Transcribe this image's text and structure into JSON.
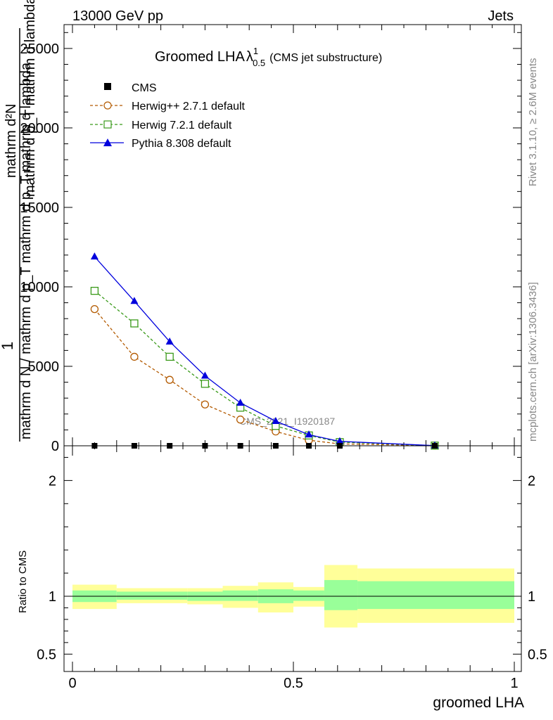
{
  "header": {
    "left": "13000 GeV pp",
    "right": "Jets"
  },
  "side_labels": {
    "rivet": "Rivet 3.1.10, ≥ 2.6M events",
    "mcplots": "mcplots.cern.ch [arXiv:1306.3436]"
  },
  "watermark": "CMS_2021_I1920187",
  "colors": {
    "cms": "#000000",
    "herwigpp": "#b35a00",
    "herwig7": "#3a9a1a",
    "pythia": "#0000dd",
    "band_inner": "#99ff99",
    "band_outer": "#ffff99"
  },
  "chart_data": [
    {
      "type": "line",
      "title": "Groomed LHA",
      "title_symbol": "λ",
      "title_sup": "1",
      "title_sub": "0.5",
      "title_note": "(CMS jet substructure)",
      "ylabel_top": "1",
      "ylabel_num": "mathrm d²N",
      "ylabel_den": "mathrm d p_T mathrm d lambda",
      "ylabel_overlap": "mathrm d N / mathrm d p_T mathrm d p_T mathrm d lambda",
      "ylim": [
        0,
        26500
      ],
      "yticks": [
        0,
        5000,
        10000,
        15000,
        20000,
        25000
      ],
      "ytick_labels": [
        "0",
        "5000",
        "10000",
        "15000",
        "20000",
        "25000"
      ],
      "xlim": [
        0,
        1
      ],
      "legend_position": "top-left",
      "legend": [
        {
          "label": "CMS",
          "marker": "square-filled"
        },
        {
          "label": "Herwig++ 2.7.1 default",
          "marker": "circle-open",
          "dash": true
        },
        {
          "label": "Herwig 7.2.1 default",
          "marker": "square-open",
          "dash": true
        },
        {
          "label": "Pythia 8.308 default",
          "marker": "triangle-filled",
          "dash": false
        }
      ],
      "cms": {
        "x": [
          0.05,
          0.14,
          0.22,
          0.3,
          0.38,
          0.46,
          0.535,
          0.605,
          0.82
        ],
        "y": [
          0,
          0,
          0,
          0,
          0,
          0,
          0,
          0,
          0
        ]
      },
      "series": [
        {
          "name": "Herwig++ 2.7.1 default",
          "x": [
            0.05,
            0.14,
            0.22,
            0.3,
            0.38,
            0.46,
            0.535,
            0.605,
            0.82
          ],
          "y": [
            8600,
            5600,
            4150,
            2600,
            1650,
            900,
            350,
            120,
            10
          ]
        },
        {
          "name": "Herwig 7.2.1 default",
          "x": [
            0.05,
            0.14,
            0.22,
            0.3,
            0.38,
            0.46,
            0.535,
            0.605,
            0.82
          ],
          "y": [
            9750,
            7700,
            5600,
            3900,
            2400,
            1250,
            650,
            230,
            10
          ]
        },
        {
          "name": "Pythia 8.308 default",
          "x": [
            0.05,
            0.14,
            0.22,
            0.3,
            0.38,
            0.46,
            0.535,
            0.605,
            0.82
          ],
          "y": [
            11900,
            9100,
            6550,
            4400,
            2700,
            1550,
            700,
            280,
            10
          ]
        }
      ]
    },
    {
      "type": "area",
      "ylabel": "Ratio to CMS",
      "xlabel": "groomed LHA",
      "xlim": [
        0,
        1
      ],
      "ylim": [
        0.35,
        2.3
      ],
      "xticks": [
        0,
        0.5,
        1
      ],
      "xtick_labels": [
        "0",
        "0.5",
        "1"
      ],
      "yticks": [
        0.5,
        1,
        2
      ],
      "ytick_labels": [
        "0.5",
        "1",
        "2"
      ],
      "reference_line": 1,
      "bins": [
        {
          "x0": 0.0,
          "x1": 0.1,
          "inner": [
            0.95,
            1.05
          ],
          "outer": [
            0.89,
            1.1
          ]
        },
        {
          "x0": 0.1,
          "x1": 0.26,
          "inner": [
            0.97,
            1.04
          ],
          "outer": [
            0.94,
            1.07
          ]
        },
        {
          "x0": 0.26,
          "x1": 0.34,
          "inner": [
            0.96,
            1.04
          ],
          "outer": [
            0.93,
            1.07
          ]
        },
        {
          "x0": 0.34,
          "x1": 0.42,
          "inner": [
            0.96,
            1.05
          ],
          "outer": [
            0.9,
            1.09
          ]
        },
        {
          "x0": 0.42,
          "x1": 0.5,
          "inner": [
            0.94,
            1.06
          ],
          "outer": [
            0.86,
            1.12
          ]
        },
        {
          "x0": 0.5,
          "x1": 0.57,
          "inner": [
            0.96,
            1.05
          ],
          "outer": [
            0.91,
            1.08
          ]
        },
        {
          "x0": 0.57,
          "x1": 0.645,
          "inner": [
            0.88,
            1.14
          ],
          "outer": [
            0.73,
            1.27
          ]
        },
        {
          "x0": 0.645,
          "x1": 1.0,
          "inner": [
            0.89,
            1.13
          ],
          "outer": [
            0.77,
            1.24
          ]
        }
      ]
    }
  ]
}
